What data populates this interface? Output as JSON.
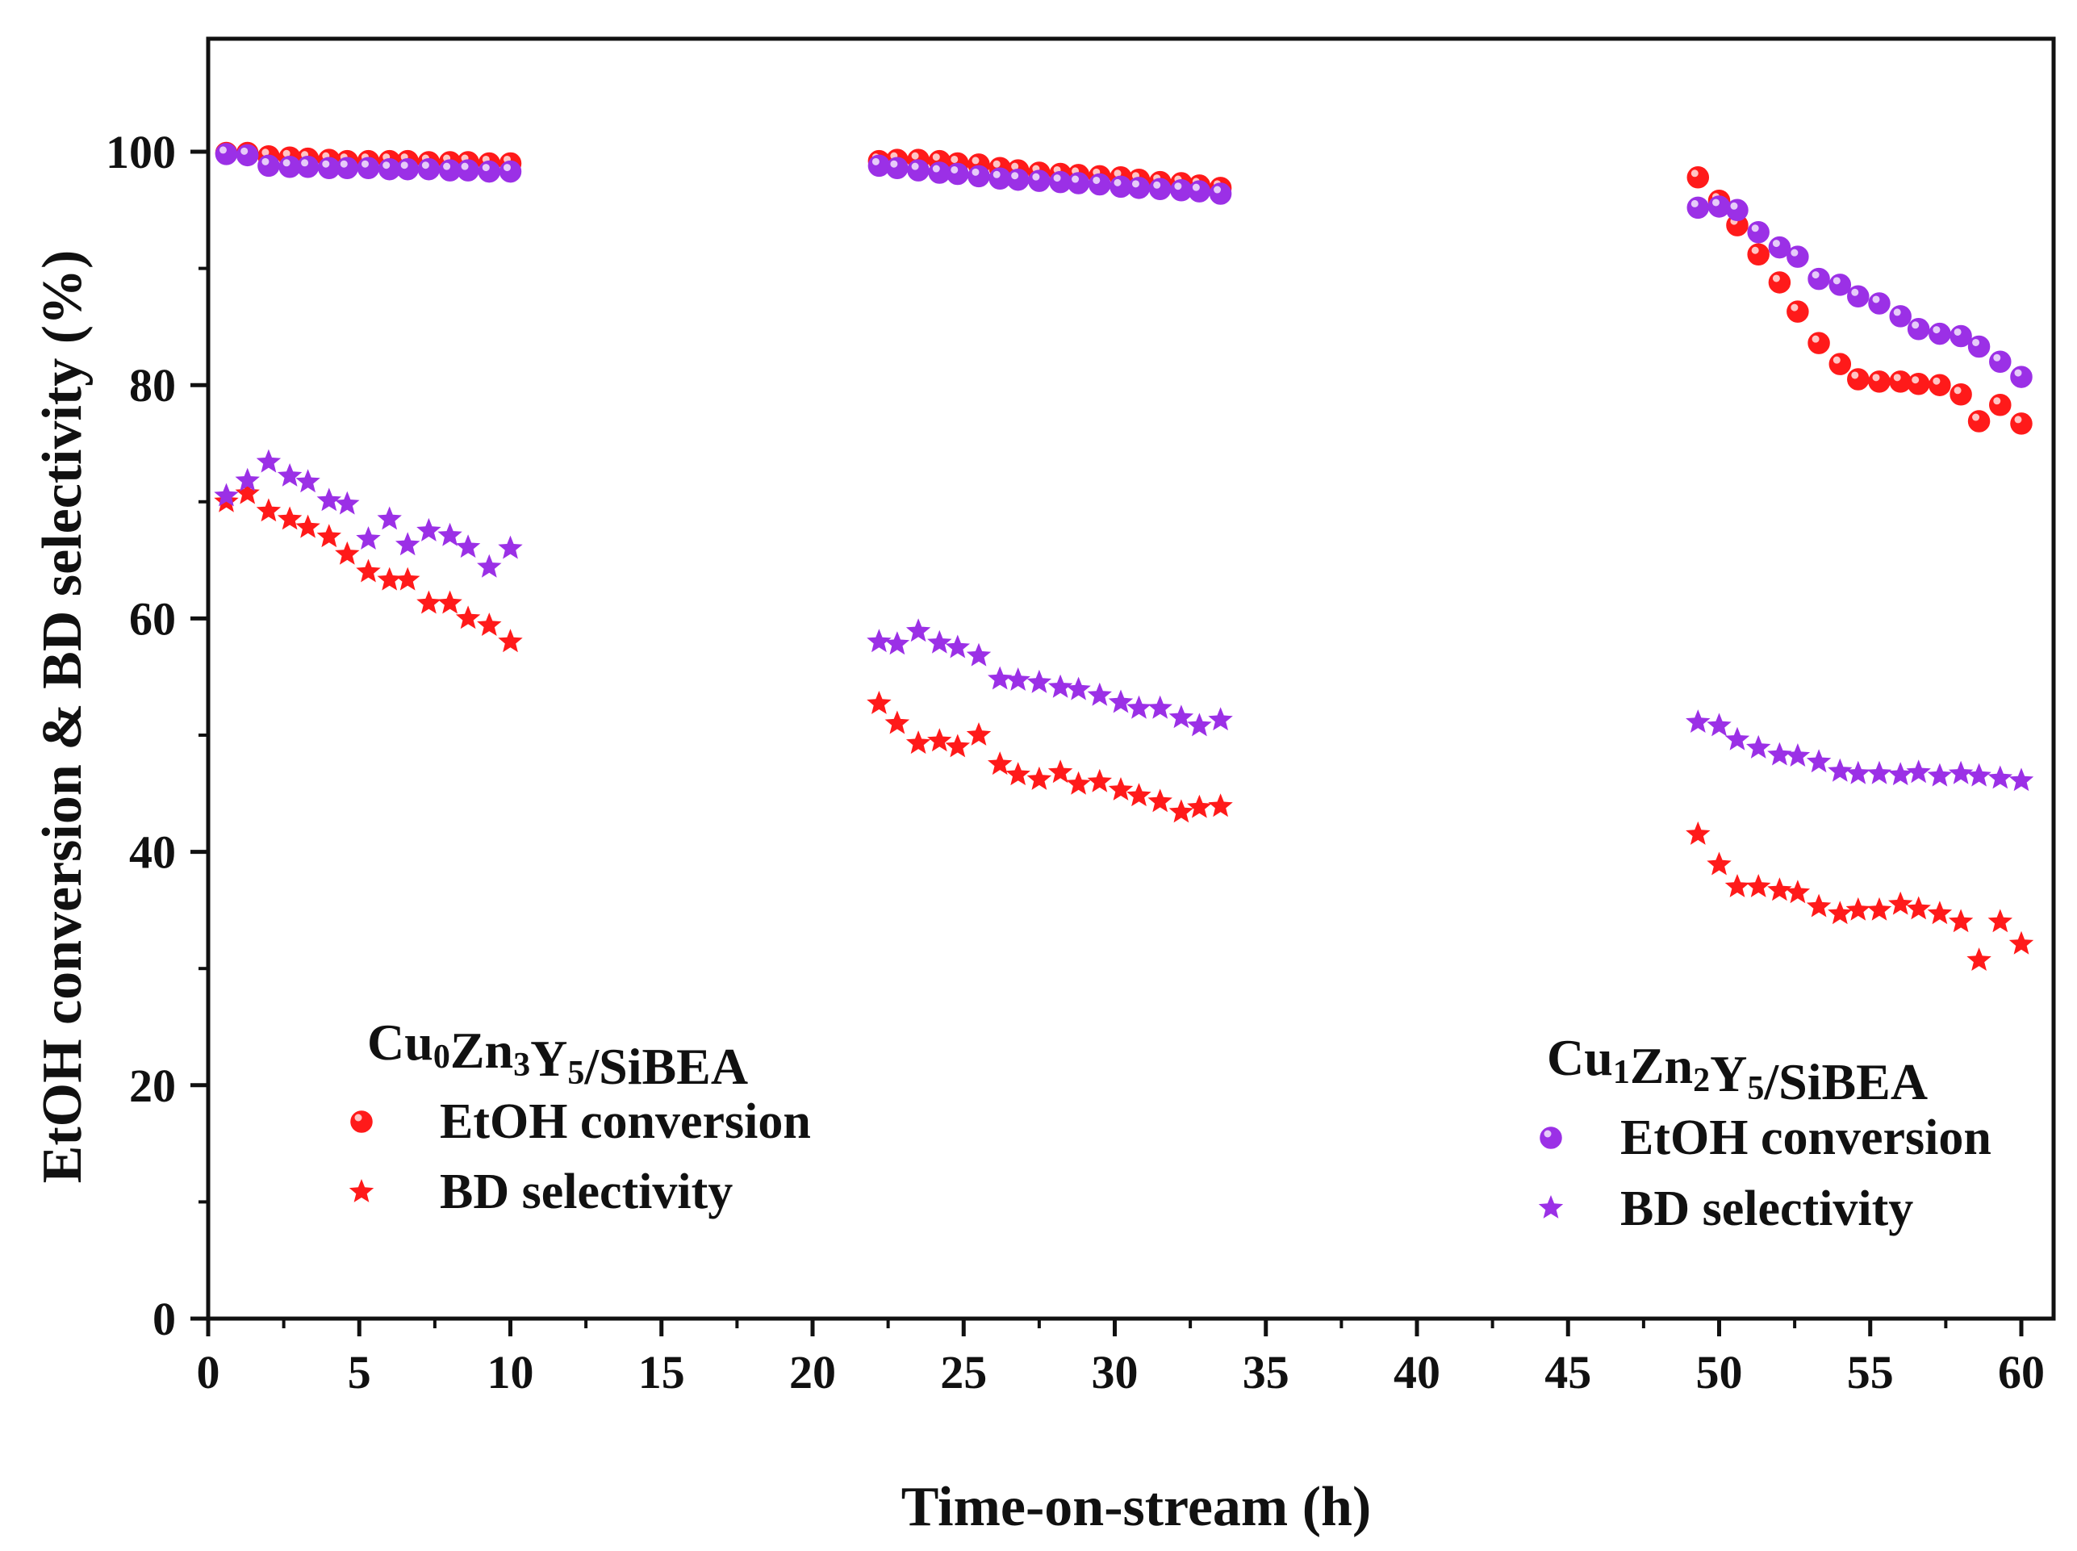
{
  "chart_data": {
    "type": "scatter",
    "xlabel": "Time-on-stream (h)",
    "ylabel": "EtOH conversion & BD selectivity (%)",
    "xlim": [
      0,
      61
    ],
    "ylim": [
      0,
      110
    ],
    "xticks": [
      0,
      5,
      10,
      15,
      20,
      25,
      30,
      35,
      40,
      45,
      50,
      55,
      60
    ],
    "yticks": [
      0,
      20,
      40,
      60,
      80,
      100
    ],
    "x_tick_labels": [
      "0",
      "5",
      "10",
      "15",
      "20",
      "25",
      "30",
      "35",
      "40",
      "45",
      "50",
      "55",
      "60"
    ],
    "y_tick_labels": [
      "0",
      "20",
      "40",
      "60",
      "80",
      "100"
    ],
    "colors": {
      "red": "#ff1a1a",
      "purple": "#9b30e6"
    },
    "legends": [
      {
        "title_parts": [
          {
            "text": "Cu",
            "sub": false
          },
          {
            "text": "0",
            "sub": true
          },
          {
            "text": "Zn",
            "sub": false
          },
          {
            "text": "3",
            "sub": true
          },
          {
            "text": "Y",
            "sub": false
          },
          {
            "text": "5",
            "sub": true
          },
          {
            "text": "/SiBEA",
            "sub": false
          }
        ],
        "placement": "bottom-left",
        "entries": [
          {
            "label": "EtOH conversion",
            "marker": "circle",
            "color": "#ff1a1a"
          },
          {
            "label": "BD selectivity",
            "marker": "star",
            "color": "#ff1a1a"
          }
        ]
      },
      {
        "title_parts": [
          {
            "text": "Cu",
            "sub": false
          },
          {
            "text": "1",
            "sub": true
          },
          {
            "text": "Zn",
            "sub": false
          },
          {
            "text": "2",
            "sub": true
          },
          {
            "text": "Y",
            "sub": false
          },
          {
            "text": "5",
            "sub": true
          },
          {
            "text": "/SiBEA",
            "sub": false
          }
        ],
        "placement": "bottom-right",
        "entries": [
          {
            "label": "EtOH conversion",
            "marker": "circle",
            "color": "#9b30e6"
          },
          {
            "label": "BD selectivity",
            "marker": "star",
            "color": "#9b30e6"
          }
        ]
      }
    ],
    "series": [
      {
        "name": "Cu0Zn3Y5/SiBEA EtOH conversion",
        "marker": "circle",
        "color": "#ff1a1a",
        "x": [
          0.6,
          1.3,
          2.0,
          2.7,
          3.3,
          4.0,
          4.6,
          5.3,
          6.0,
          6.6,
          7.3,
          8.0,
          8.6,
          9.3,
          10.0,
          22.2,
          22.8,
          23.5,
          24.2,
          24.8,
          25.5,
          26.2,
          26.8,
          27.5,
          28.2,
          28.8,
          29.5,
          30.2,
          30.8,
          31.5,
          32.2,
          32.8,
          33.5,
          49.3,
          50.0,
          50.6,
          51.3,
          52.0,
          52.6,
          53.3,
          54.0,
          54.6,
          55.3,
          56.0,
          56.6,
          57.3,
          58.0,
          58.6,
          59.3,
          60.0
        ],
        "y": [
          99.9,
          99.9,
          99.6,
          99.5,
          99.4,
          99.3,
          99.2,
          99.2,
          99.2,
          99.2,
          99.1,
          99.1,
          99.1,
          99.0,
          99.0,
          99.2,
          99.3,
          99.3,
          99.2,
          99.0,
          98.9,
          98.6,
          98.4,
          98.2,
          98.1,
          98.0,
          97.9,
          97.8,
          97.6,
          97.4,
          97.3,
          97.1,
          96.9,
          97.8,
          95.8,
          93.7,
          91.2,
          88.8,
          86.3,
          83.6,
          81.8,
          80.5,
          80.3,
          80.3,
          80.1,
          80.0,
          79.2,
          76.9,
          78.3,
          76.7
        ]
      },
      {
        "name": "Cu0Zn3Y5/SiBEA BD selectivity",
        "marker": "star",
        "color": "#ff1a1a",
        "x": [
          0.6,
          1.3,
          2.0,
          2.7,
          3.3,
          4.0,
          4.6,
          5.3,
          6.0,
          6.6,
          7.3,
          8.0,
          8.6,
          9.3,
          10.0,
          22.2,
          22.8,
          23.5,
          24.2,
          24.8,
          25.5,
          26.2,
          26.8,
          27.5,
          28.2,
          28.8,
          29.5,
          30.2,
          30.8,
          31.5,
          32.2,
          32.8,
          33.5,
          49.3,
          50.0,
          50.6,
          51.3,
          52.0,
          52.6,
          53.3,
          54.0,
          54.6,
          55.3,
          56.0,
          56.6,
          57.3,
          58.0,
          58.6,
          59.3,
          60.0
        ],
        "y": [
          70.0,
          70.7,
          69.2,
          68.5,
          67.8,
          67.0,
          65.5,
          64.0,
          63.3,
          63.3,
          61.3,
          61.3,
          60.0,
          59.4,
          58.0,
          52.7,
          51.0,
          49.3,
          49.5,
          49.0,
          50.0,
          47.5,
          46.6,
          46.2,
          46.8,
          45.8,
          46.0,
          45.3,
          44.8,
          44.3,
          43.4,
          43.8,
          43.9,
          41.5,
          38.9,
          37.0,
          37.0,
          36.7,
          36.5,
          35.3,
          34.7,
          35.0,
          35.0,
          35.5,
          35.1,
          34.7,
          34.0,
          30.7,
          34.0,
          32.1
        ]
      },
      {
        "name": "Cu1Zn2Y5/SiBEA EtOH conversion",
        "marker": "circle",
        "color": "#9b30e6",
        "x": [
          0.6,
          1.3,
          2.0,
          2.7,
          3.3,
          4.0,
          4.6,
          5.3,
          6.0,
          6.6,
          7.3,
          8.0,
          8.6,
          9.3,
          10.0,
          22.2,
          22.8,
          23.5,
          24.2,
          24.8,
          25.5,
          26.2,
          26.8,
          27.5,
          28.2,
          28.8,
          29.5,
          30.2,
          30.8,
          31.5,
          32.2,
          32.8,
          33.5,
          49.3,
          50.0,
          50.6,
          51.3,
          52.0,
          52.6,
          53.3,
          54.0,
          54.6,
          55.3,
          56.0,
          56.6,
          57.3,
          58.0,
          58.6,
          59.3,
          60.0
        ],
        "y": [
          99.8,
          99.7,
          98.8,
          98.7,
          98.7,
          98.6,
          98.6,
          98.6,
          98.5,
          98.5,
          98.5,
          98.4,
          98.4,
          98.3,
          98.3,
          98.8,
          98.6,
          98.4,
          98.2,
          98.1,
          97.9,
          97.7,
          97.6,
          97.5,
          97.4,
          97.3,
          97.2,
          97.0,
          96.9,
          96.8,
          96.7,
          96.6,
          96.4,
          95.2,
          95.3,
          95.0,
          93.1,
          91.8,
          91.0,
          89.1,
          88.6,
          87.6,
          87.0,
          85.9,
          84.8,
          84.4,
          84.2,
          83.3,
          82.0,
          80.7
        ]
      },
      {
        "name": "Cu1Zn2Y5/SiBEA BD selectivity",
        "marker": "star",
        "color": "#9b30e6",
        "x": [
          0.6,
          1.3,
          2.0,
          2.7,
          3.3,
          4.0,
          4.6,
          5.3,
          6.0,
          6.6,
          7.3,
          8.0,
          8.6,
          9.3,
          10.0,
          22.2,
          22.8,
          23.5,
          24.2,
          24.8,
          25.5,
          26.2,
          26.8,
          27.5,
          28.2,
          28.8,
          29.5,
          30.2,
          30.8,
          31.5,
          32.2,
          32.8,
          33.5,
          49.3,
          50.0,
          50.6,
          51.3,
          52.0,
          52.6,
          53.3,
          54.0,
          54.6,
          55.3,
          56.0,
          56.6,
          57.3,
          58.0,
          58.6,
          59.3,
          60.0
        ],
        "y": [
          70.5,
          71.8,
          73.4,
          72.2,
          71.7,
          70.1,
          69.8,
          66.8,
          68.5,
          66.3,
          67.5,
          67.1,
          66.1,
          64.4,
          66.0,
          58.0,
          57.8,
          58.9,
          57.9,
          57.5,
          56.8,
          54.8,
          54.7,
          54.5,
          54.1,
          53.9,
          53.4,
          52.8,
          52.3,
          52.3,
          51.5,
          50.8,
          51.3,
          51.1,
          50.8,
          49.6,
          48.9,
          48.3,
          48.2,
          47.7,
          46.9,
          46.7,
          46.7,
          46.6,
          46.8,
          46.5,
          46.7,
          46.5,
          46.3,
          46.1
        ]
      }
    ]
  }
}
